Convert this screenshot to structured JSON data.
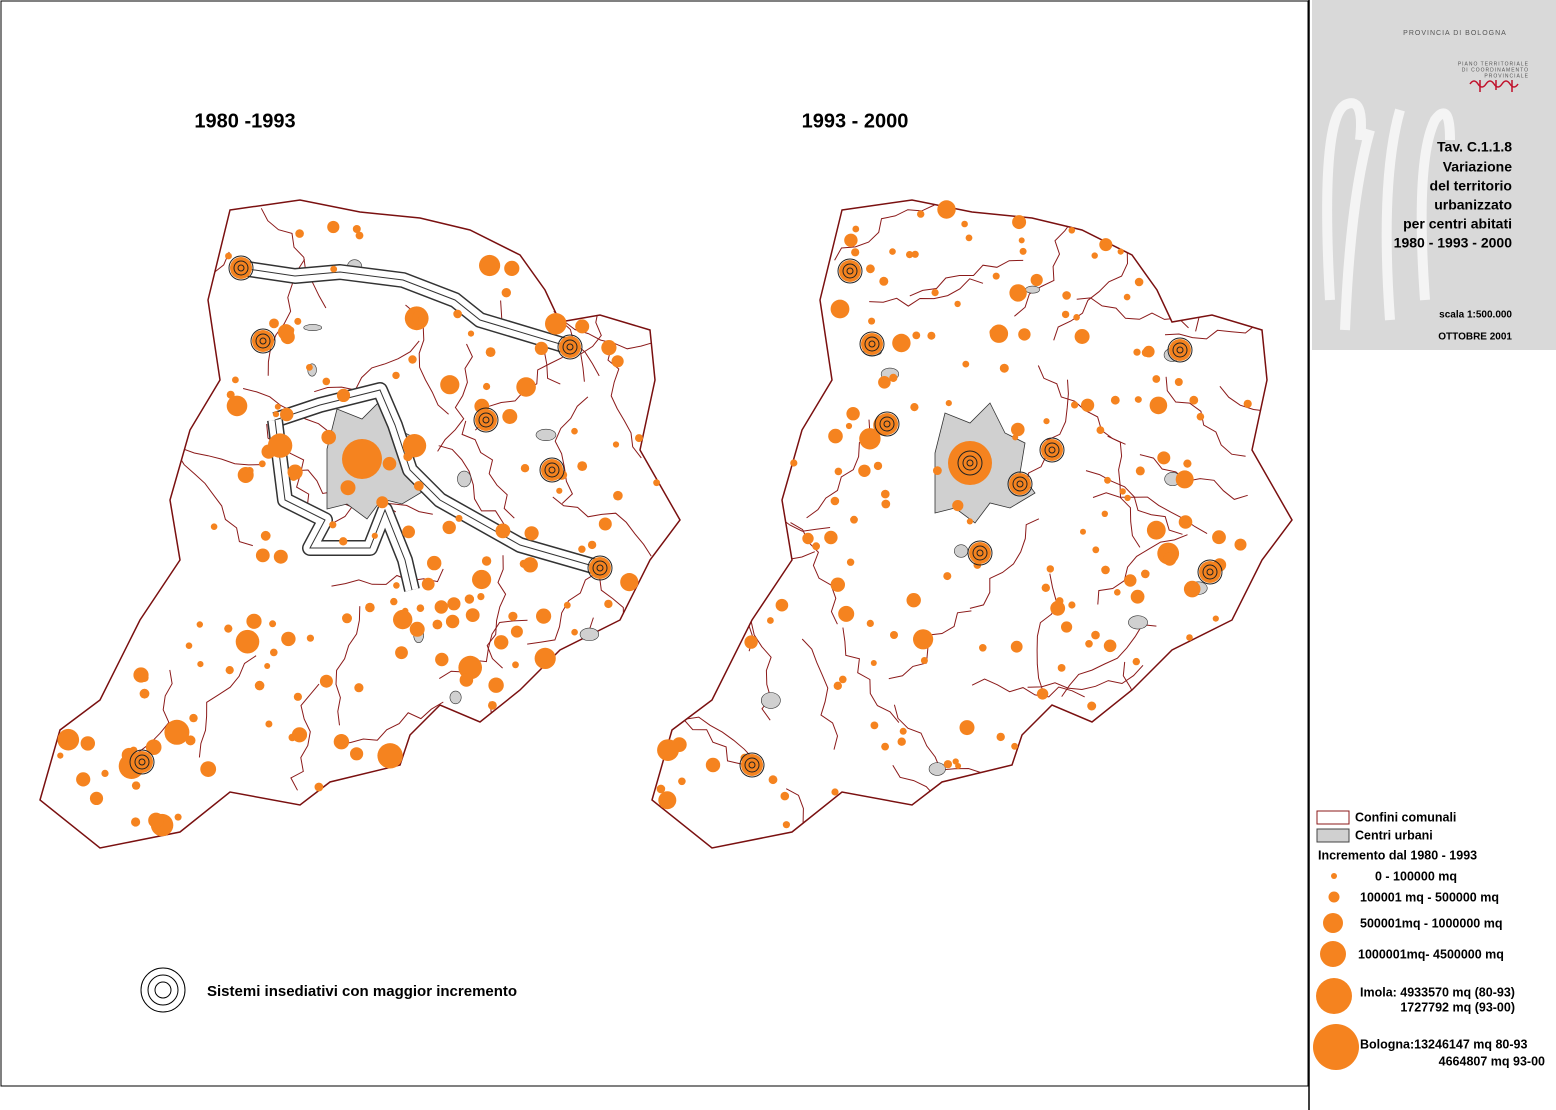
{
  "maps": [
    {
      "title": "1980 -1993"
    },
    {
      "title": "1993 - 2000"
    }
  ],
  "panel": {
    "agency": "PROVINCIA DI BOLOGNA",
    "plan_lines": [
      "PIANO TERRITORIALE",
      "DI COORDINAMENTO",
      "PROVINCIALE"
    ],
    "title_lines": [
      "Tav. C.1.1.8",
      "Variazione",
      "del territorio",
      "urbanizzato",
      "per centri abitati",
      "1980 - 1993 - 2000"
    ],
    "scale": "scala 1:500.000",
    "date": "OTTOBRE 2001"
  },
  "legend": {
    "boundaries": "Confini comunali",
    "urban": "Centri urbani",
    "heading": "Incremento dal 1980 - 1993",
    "classes": [
      "0 - 100000 mq",
      "100001 mq - 500000 mq",
      "500001mq - 1000000 mq",
      "1000001mq- 4500000 mq"
    ],
    "imola": [
      "Imola: 4933570 mq (80-93)",
      "1727792 mq (93-00)"
    ],
    "bologna": [
      "Bologna:13246147 mq 80-93",
      "4664807 mq 93-00"
    ]
  },
  "note": "Sistemi insediativi con maggior incremento"
}
